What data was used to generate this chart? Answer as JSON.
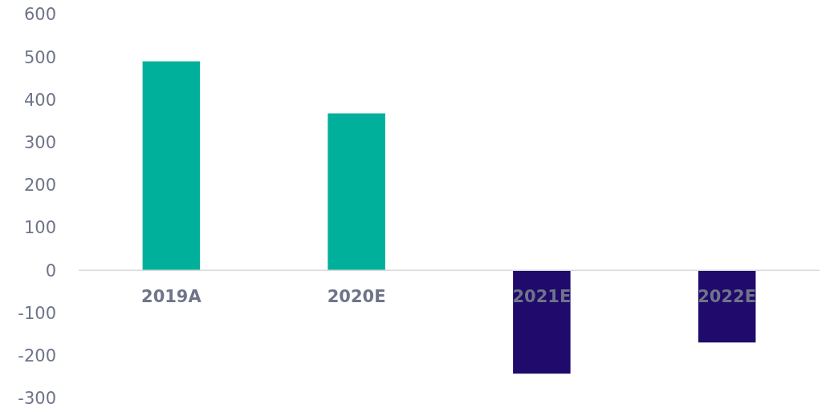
{
  "chart_data": {
    "type": "bar",
    "categories": [
      "2019A",
      "2020E",
      "2021E",
      "2022E"
    ],
    "values": [
      490,
      368,
      -242,
      -169
    ],
    "colors": [
      "#00b09b",
      "#00b09b",
      "#200a6b",
      "#200a6b"
    ],
    "ylim": [
      -300,
      600
    ],
    "yticks": [
      -300,
      -200,
      -100,
      0,
      100,
      200,
      300,
      400,
      500,
      600
    ],
    "grid": false
  }
}
